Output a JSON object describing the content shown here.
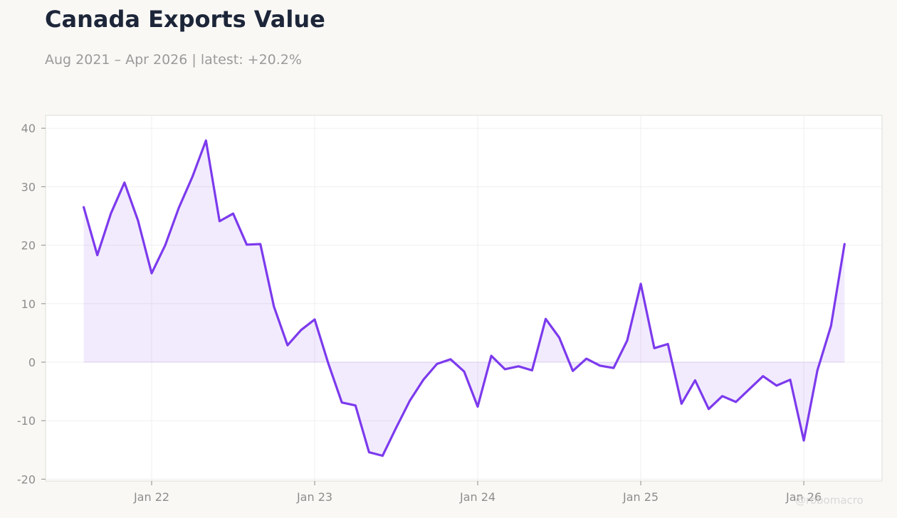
{
  "title": "Canada Exports Value",
  "subtitle": "Aug 2021 – Apr 2026 | latest: +20.2%",
  "watermark": "@robomacro",
  "colors": {
    "line": "#7c3aed",
    "fill": "#7c3aed",
    "background": "#f9f8f5",
    "plot_background": "#ffffff",
    "title": "#1d2639",
    "subtitle": "#9a9a9a",
    "tick": "#8d8d8d",
    "grid": "#efefef",
    "frame": "#dcdcd6"
  },
  "chart_data": {
    "type": "area",
    "title": "Canada Exports Value",
    "subtitle": "Aug 2021 – Apr 2026 | latest: +20.2%",
    "xlabel": "",
    "ylabel": "",
    "ylim": [
      -20,
      42
    ],
    "yticks": [
      40,
      30,
      20,
      10,
      0,
      -10,
      -20
    ],
    "ytick_labels": [
      "40",
      "30",
      "20",
      "10",
      "0",
      "-10",
      "-20"
    ],
    "xticks": [
      "Jan 22",
      "Jan 23",
      "Jan 24",
      "Jan 25",
      "Jan 26"
    ],
    "grid": true,
    "legend": "none",
    "series": [
      {
        "x": [
          "2021-08",
          "2021-09",
          "2021-10",
          "2021-11",
          "2021-12",
          "2022-01",
          "2022-02",
          "2022-03",
          "2022-04",
          "2022-05",
          "2022-06",
          "2022-07",
          "2022-08",
          "2022-09",
          "2022-10",
          "2022-11",
          "2022-12",
          "2023-01",
          "2023-02",
          "2023-03",
          "2023-04",
          "2023-05",
          "2023-06",
          "2023-07",
          "2023-08",
          "2023-09",
          "2023-10",
          "2023-11",
          "2023-12",
          "2024-01",
          "2024-02",
          "2024-03",
          "2024-04",
          "2024-05",
          "2024-06",
          "2024-07",
          "2024-08",
          "2024-09",
          "2024-10",
          "2024-11",
          "2024-12",
          "2025-01",
          "2025-02",
          "2025-03",
          "2025-04",
          "2025-05",
          "2025-06",
          "2025-07",
          "2025-08",
          "2025-09",
          "2025-10",
          "2025-11",
          "2025-12",
          "2026-01",
          "2026-02",
          "2026-03",
          "2026-04"
        ],
        "values": [
          26.5,
          18.3,
          25.4,
          30.7,
          24.2,
          15.2,
          20.0,
          26.4,
          31.7,
          37.9,
          24.1,
          25.4,
          20.1,
          20.2,
          9.5,
          2.9,
          5.5,
          7.3,
          -0.2,
          -6.9,
          -7.4,
          -15.4,
          -16.0,
          -11.2,
          -6.6,
          -3.0,
          -0.3,
          0.5,
          -1.6,
          -7.6,
          1.1,
          -1.2,
          -0.7,
          -1.4,
          7.4,
          4.2,
          -1.5,
          0.6,
          -0.6,
          -1.0,
          3.7,
          13.4,
          2.4,
          3.1,
          -7.1,
          -3.1,
          -8.0,
          -5.8,
          -6.8,
          -4.6,
          -2.4,
          -4.0,
          -3.0,
          -13.4,
          -1.4,
          6.2,
          20.2
        ]
      }
    ]
  }
}
